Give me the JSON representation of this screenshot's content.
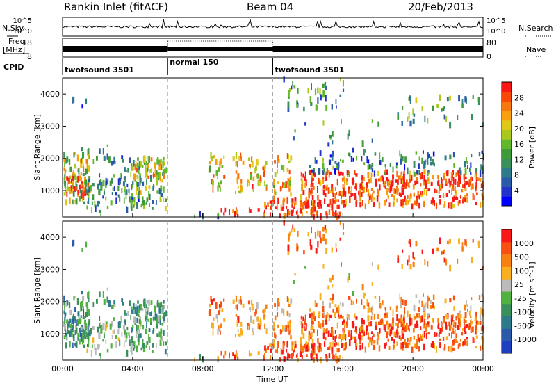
{
  "header": {
    "station": "Rankin Inlet (fitACF)",
    "beam": "Beam 04",
    "date": "20/Feb/2013"
  },
  "side_labels": {
    "nsky": "N.Sky",
    "nsky_ticks": [
      "10^5",
      "10^0"
    ],
    "freq_line1": "Freq.",
    "freq_line2": "[MHz]",
    "freq_ticks": [
      "18",
      "8"
    ],
    "cpid": "CPID",
    "nsearch": "N.Search",
    "nsearch_ticks": [
      "10^5",
      "10^0"
    ],
    "nave": "Nave",
    "nave_ticks": [
      "80",
      "0"
    ]
  },
  "cpid_segments": [
    {
      "label": "twofsound 3501",
      "start_h": 0,
      "end_h": 6
    },
    {
      "label": "normal 150",
      "start_h": 6,
      "end_h": 12
    },
    {
      "label": "twofsound 3501",
      "start_h": 12,
      "end_h": 24
    }
  ],
  "axes": {
    "x_label": "Time UT",
    "x_ticks": [
      "00:00",
      "04:00",
      "08:00",
      "12:00",
      "16:00",
      "20:00",
      "00:00"
    ],
    "x_range_h": [
      0,
      24
    ],
    "y_label": "Slant Range [km]",
    "y_ticks": [
      "1000",
      "2000",
      "3000",
      "4000"
    ],
    "y_range_km": [
      180,
      4500
    ]
  },
  "chart_data": [
    {
      "type": "heatmap",
      "name": "Power",
      "colorbar_label": "Power [dB]",
      "colorbar_ticks": [
        "4",
        "8",
        "12",
        "16",
        "20",
        "24",
        "28"
      ],
      "colorbar_colors": [
        "#0000ff",
        "#2233cc",
        "#2a5aa8",
        "#2f7a8a",
        "#3a8f5a",
        "#3f9a3a",
        "#60b82a",
        "#a8c81e",
        "#e0c818",
        "#f8a010",
        "#f87810",
        "#f84808",
        "#f81818"
      ],
      "value_range_db": [
        0,
        32
      ]
    },
    {
      "type": "heatmap",
      "name": "Velocity",
      "colorbar_label": "Velocity [m s^-1]",
      "colorbar_ticks": [
        "1000",
        "500",
        "100",
        "25",
        "-25",
        "-100",
        "-500",
        "-1000"
      ],
      "colorbar_colors": [
        "#1e40c0",
        "#2a5aa8",
        "#2f7a8a",
        "#3a8f5a",
        "#50b040",
        "#bbbbbb",
        "#f8b020",
        "#f88010",
        "#f85010",
        "#f81818"
      ],
      "value_range_ms": [
        -1000,
        1000
      ]
    }
  ]
}
